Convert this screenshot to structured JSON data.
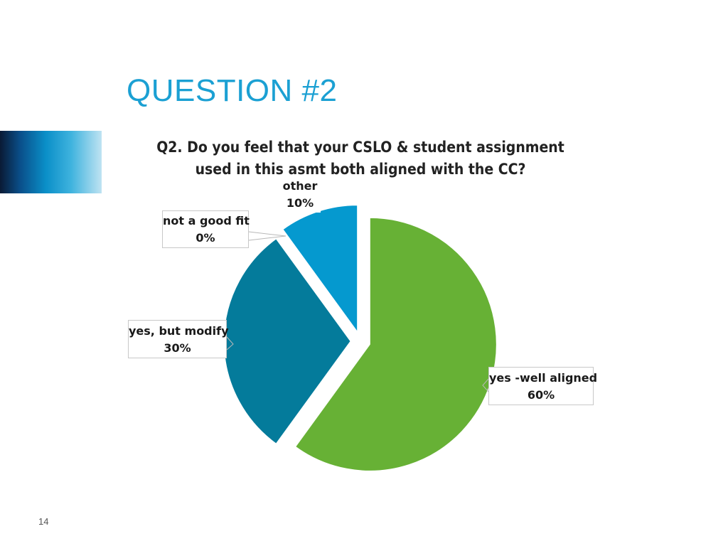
{
  "slide": {
    "title": "QUESTION #2",
    "page_number": "14"
  },
  "chart_data": {
    "type": "pie",
    "title_lines": [
      "Q2. Do you feel that your CSLO & student assignment",
      "used in this asmt both aligned with the CC?"
    ],
    "slices": [
      {
        "label": "yes -well aligned",
        "value_label": "60%",
        "value": 60,
        "color": "#67b135"
      },
      {
        "label": "not a good fit",
        "value_label": "0%",
        "value": 0,
        "color": "#0b7a99"
      },
      {
        "label": "yes, but modify",
        "value_label": "30%",
        "value": 30,
        "color": "#047b9b"
      },
      {
        "label": "other",
        "value_label": "10%",
        "value": 10,
        "color": "#0599cf"
      }
    ],
    "exploded": true,
    "legend": "none"
  }
}
